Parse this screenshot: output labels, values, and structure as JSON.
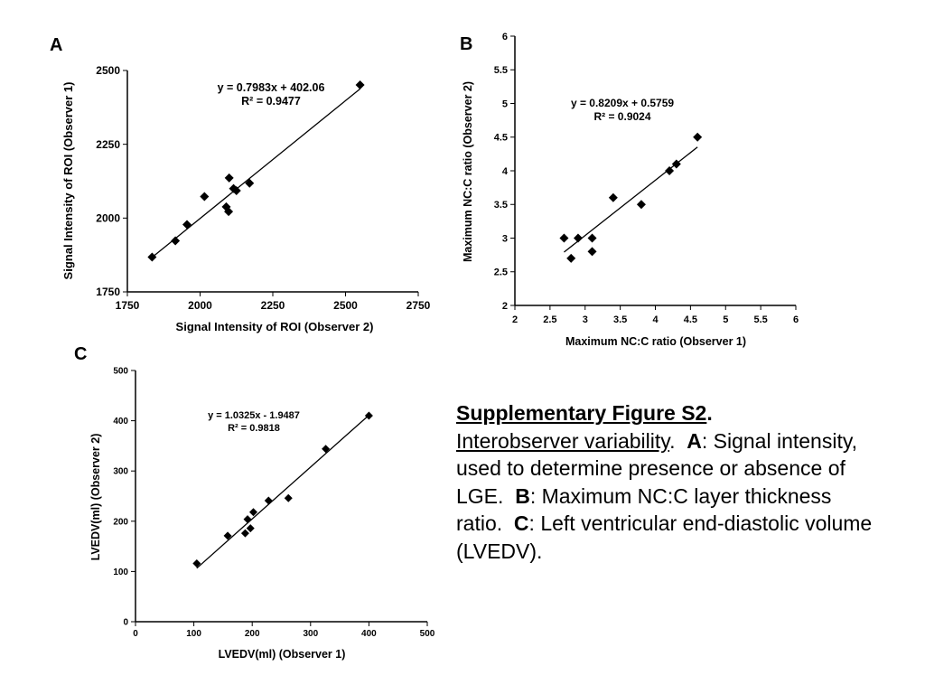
{
  "chart_data": [
    {
      "type": "scatter",
      "panel_label": "A",
      "xlabel": "Signal Intensity  of ROI (Observer 2)",
      "ylabel": "Signal Intensity of ROI (Observer 1)",
      "xlim": [
        1750,
        2750
      ],
      "ylim": [
        1750,
        2500
      ],
      "xticks": [
        "1750",
        "2000",
        "2250",
        "2500",
        "2750"
      ],
      "yticks": [
        "1750",
        "2000",
        "2250",
        "2500"
      ],
      "points": [
        {
          "x": 1835,
          "y": 1868
        },
        {
          "x": 1915,
          "y": 1923
        },
        {
          "x": 1955,
          "y": 1978
        },
        {
          "x": 2015,
          "y": 2073
        },
        {
          "x": 2090,
          "y": 2038
        },
        {
          "x": 2098,
          "y": 2022
        },
        {
          "x": 2100,
          "y": 2136
        },
        {
          "x": 2115,
          "y": 2100
        },
        {
          "x": 2125,
          "y": 2093
        },
        {
          "x": 2170,
          "y": 2118
        },
        {
          "x": 2550,
          "y": 2451
        }
      ],
      "trendline": {
        "slope": 0.7983,
        "intercept": 402.06,
        "x_range": [
          1835,
          2550
        ]
      },
      "equation": "y = 0.7983x + 402.06",
      "r2": "R² = 0.9477"
    },
    {
      "type": "scatter",
      "panel_label": "B",
      "xlabel": "Maximum NC:C ratio (Observer 1)",
      "ylabel": "Maximum NC:C ratio (Observer 2)",
      "xlim": [
        2,
        6
      ],
      "ylim": [
        2,
        6
      ],
      "xticks": [
        "2",
        "2.5",
        "3",
        "3.5",
        "4",
        "4.5",
        "5",
        "5.5",
        "6"
      ],
      "yticks": [
        "2",
        "2.5",
        "3",
        "3.5",
        "4",
        "4.5",
        "5",
        "5.5",
        "6"
      ],
      "points": [
        {
          "x": 2.7,
          "y": 3.0
        },
        {
          "x": 2.8,
          "y": 2.7
        },
        {
          "x": 2.9,
          "y": 3.0
        },
        {
          "x": 3.1,
          "y": 3.0
        },
        {
          "x": 3.1,
          "y": 2.8
        },
        {
          "x": 3.4,
          "y": 3.6
        },
        {
          "x": 3.8,
          "y": 3.5
        },
        {
          "x": 4.2,
          "y": 4.0
        },
        {
          "x": 4.3,
          "y": 4.1
        },
        {
          "x": 4.6,
          "y": 4.5
        }
      ],
      "trendline": {
        "slope": 0.8209,
        "intercept": 0.5759,
        "x_range": [
          2.7,
          4.6
        ]
      },
      "equation": "y = 0.8209x + 0.5759",
      "r2": "R² = 0.9024"
    },
    {
      "type": "scatter",
      "panel_label": "C",
      "xlabel": "LVEDV(ml) (Observer 1)",
      "ylabel": "LVEDV(ml) (Observer 2)",
      "xlim": [
        0,
        500
      ],
      "ylim": [
        0,
        500
      ],
      "xticks": [
        "0",
        "100",
        "200",
        "300",
        "400",
        "500"
      ],
      "yticks": [
        "0",
        "100",
        "200",
        "300",
        "400",
        "500"
      ],
      "points": [
        {
          "x": 105,
          "y": 116
        },
        {
          "x": 158,
          "y": 171
        },
        {
          "x": 188,
          "y": 176
        },
        {
          "x": 192,
          "y": 204
        },
        {
          "x": 197,
          "y": 186
        },
        {
          "x": 202,
          "y": 218
        },
        {
          "x": 228,
          "y": 241
        },
        {
          "x": 262,
          "y": 246
        },
        {
          "x": 326,
          "y": 344
        },
        {
          "x": 400,
          "y": 410
        }
      ],
      "trendline": {
        "slope": 1.0325,
        "intercept": -1.9487,
        "x_range": [
          105,
          400
        ]
      },
      "equation": "y = 1.0325x - 1.9487",
      "r2": "R² = 0.9818"
    }
  ],
  "caption": {
    "title": "Supplementary Figure S2",
    "title_end": ".",
    "subtitle": "Interobserver variability",
    "subtitle_end": ".",
    "a_label": "A",
    "a_text": ":  Signal intensity, used to determine presence or absence of LGE.",
    "b_label": "B",
    "b_text": ":  Maximum NC:C layer thickness ratio.",
    "c_label": "C",
    "c_text": ":  Left ventricular end-diastolic volume (LVEDV)."
  }
}
